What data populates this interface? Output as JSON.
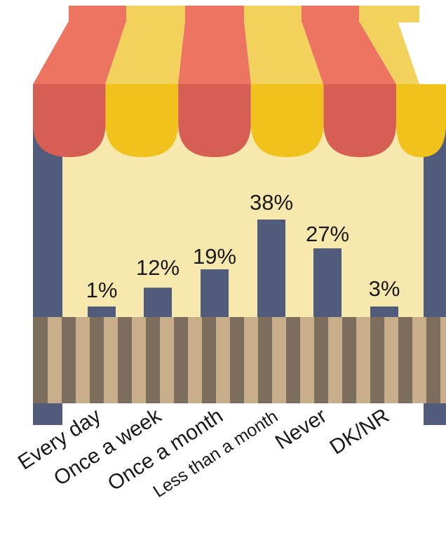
{
  "chart_data": {
    "type": "bar",
    "categories": [
      "Every day",
      "Once a week",
      "Once a month",
      "Less than a month",
      "Never",
      "DK/NR"
    ],
    "values": [
      1,
      12,
      19,
      38,
      27,
      3
    ],
    "value_labels": [
      "1%",
      "12%",
      "19%",
      "38%",
      "27%",
      "3%"
    ],
    "unit": "%",
    "ylim": [
      0,
      38
    ],
    "grid": false,
    "legend": "none"
  },
  "colors": {
    "bar": "#515b7c",
    "awning_red": "#ee7462",
    "awning_red_dark": "#d65e55",
    "awning_yellow": "#f2d15c",
    "awning_yellow_dark": "#f0c21b",
    "wall": "#f7e8ad",
    "post": "#515b7c",
    "counter_dark": "#7c6d5d",
    "counter_light": "#c8ad8a"
  }
}
